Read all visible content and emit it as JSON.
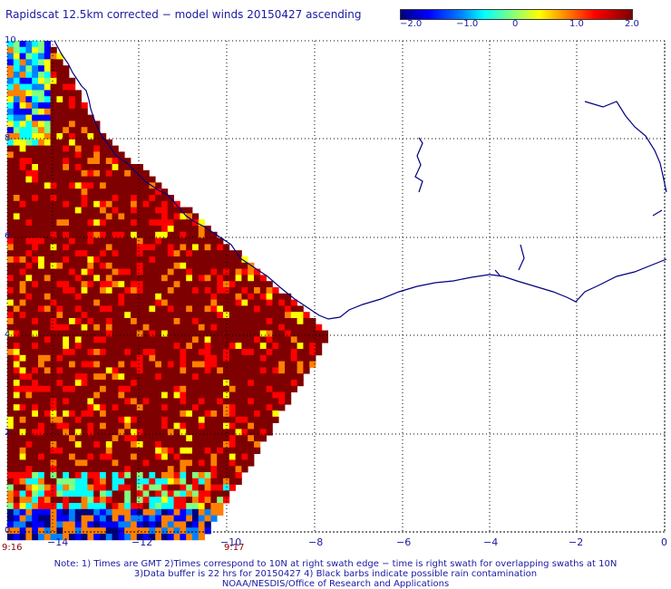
{
  "title": "Rapidscat 12.5km corrected − model winds 20150427 ascending",
  "colorbar": {
    "ticks": [
      "−2.0",
      "−1.0",
      "0",
      "1.0",
      "2.0"
    ],
    "colors": [
      "#00007f",
      "#0000ff",
      "#0080ff",
      "#00ffff",
      "#80ff80",
      "#ffff00",
      "#ff8000",
      "#ff0000",
      "#7f0000"
    ]
  },
  "axes": {
    "x_ticks": [
      "−14",
      "−12",
      "−10",
      "−8",
      "−6",
      "−4",
      "−2",
      "0"
    ],
    "y_ticks": [
      "10",
      "8",
      "6",
      "4",
      "2",
      "0"
    ]
  },
  "times": {
    "left": "9:16",
    "right": "9:17"
  },
  "notes": {
    "line1": "Note: 1) Times are GMT 2)Times correspond to 10N at right swath edge − time is right swath for overlapping swaths at 10N",
    "line2": "3)Data buffer is 22 hrs for 20150427 4) Black barbs indicate possible rain contamination",
    "line3": "NOAA/NESDIS/Office of Research and Applications"
  }
}
